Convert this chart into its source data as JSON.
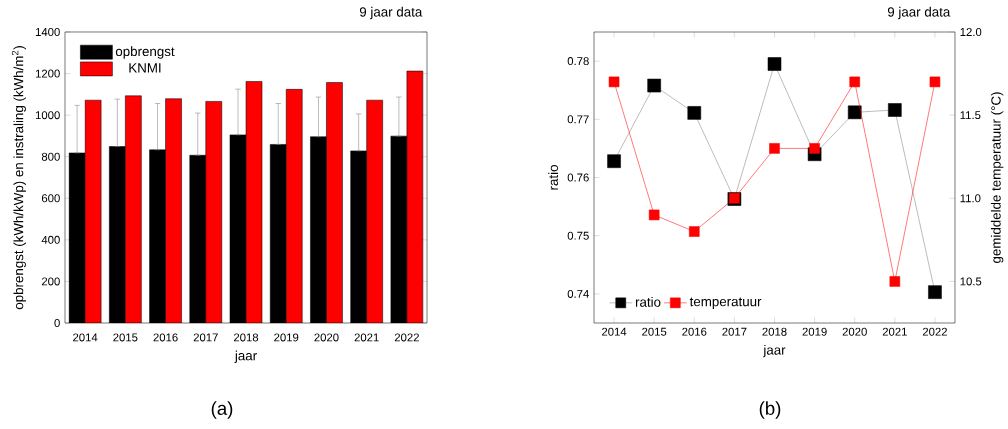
{
  "chart_data": [
    {
      "type": "bar",
      "title": "9 jaar data",
      "xlabel": "jaar",
      "ylabel": "opbrengst (kWh/kWp) en instraling (kWh/m$^{2}$)",
      "annotations": [
        "(a)"
      ],
      "categories": [
        "2014",
        "2015",
        "2016",
        "2017",
        "2018",
        "2019",
        "2020",
        "2021",
        "2022"
      ],
      "series": [
        {
          "name": "opbrengst",
          "color": "#000000",
          "values": [
            818,
            849,
            833,
            807,
            905,
            859,
            896,
            828,
            899
          ],
          "errors": [
            [
              818,
              1047
            ],
            [
              849,
              1077
            ],
            [
              833,
              1056
            ],
            [
              807,
              1010
            ],
            [
              905,
              1125
            ],
            [
              859,
              1056
            ],
            [
              896,
              1087
            ],
            [
              828,
              1006
            ],
            [
              899,
              1087
            ]
          ]
        },
        {
          "name": "KNMI",
          "color": "#ff0000",
          "values": [
            1072,
            1093,
            1079,
            1066,
            1162,
            1124,
            1157,
            1072,
            1212
          ]
        }
      ],
      "ylim": [
        0,
        1400
      ],
      "yticks": [
        0,
        200,
        400,
        600,
        800,
        1000,
        1200,
        1400
      ],
      "legend": "top left",
      "grid": false
    },
    {
      "type": "line",
      "title": "9 jaar data",
      "xlabel": "jaar",
      "ylabel": "ratio",
      "y2label": "gemiddelde temperatuur (°C)",
      "annotations": [
        "(b)"
      ],
      "categories": [
        "2014",
        "2015",
        "2016",
        "2017",
        "2018",
        "2019",
        "2020",
        "2021",
        "2022"
      ],
      "series": [
        {
          "name": "ratio",
          "color": "#000000",
          "values": [
            0.7628,
            0.7758,
            0.7711,
            0.7563,
            0.7795,
            0.764,
            0.7712,
            0.7716,
            0.7403
          ]
        },
        {
          "name": "temperatuur",
          "color": "#ff0000",
          "axis": "y2",
          "values": [
            11.7,
            10.9,
            10.8,
            11.0,
            11.3,
            11.3,
            11.7,
            10.5,
            11.7
          ]
        }
      ],
      "ylim": [
        0.735,
        0.785
      ],
      "yticks": [
        0.74,
        0.75,
        0.76,
        0.77,
        0.78
      ],
      "y2lim": [
        10.25,
        12.0
      ],
      "y2ticks": [
        {
          "value": 10.5,
          "label": "10.5"
        },
        {
          "value": 11.0,
          "label": "11.0"
        },
        {
          "value": 11.5,
          "label": "11.5"
        },
        {
          "value": 12.0,
          "label": "12.0"
        }
      ],
      "legend": "bottom left",
      "marker": "square",
      "line_style": "solid",
      "grid": false
    }
  ]
}
